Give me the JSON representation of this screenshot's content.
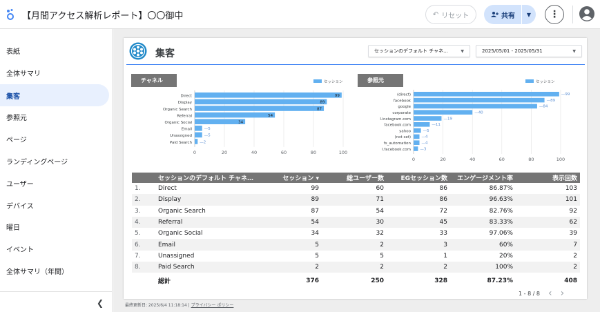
{
  "header": {
    "title": "【月間アクセス解析レポート】〇〇御中",
    "reset_label": "リセット",
    "share_label": "共有"
  },
  "sidebar": {
    "items": [
      {
        "label": "表紙"
      },
      {
        "label": "全体サマリ"
      },
      {
        "label": "集客"
      },
      {
        "label": "参照元"
      },
      {
        "label": "ページ"
      },
      {
        "label": "ランディングページ"
      },
      {
        "label": "ユーザー"
      },
      {
        "label": "デバイス"
      },
      {
        "label": "曜日"
      },
      {
        "label": "イベント"
      },
      {
        "label": "全体サマリ（年間）"
      }
    ],
    "active_index": 2
  },
  "page": {
    "title": "集客",
    "channel_dropdown": "セッションのデフォルト チャネ...",
    "date_range": "2025/05/01 - 2025/05/31"
  },
  "colors": {
    "bar": "#62b0f0",
    "accent": "#4285f4",
    "header_gray": "#757575",
    "active_bg": "#e8f0fe"
  },
  "chart_data": [
    {
      "type": "bar",
      "title": "チャネル",
      "legend": "セッション",
      "categories": [
        "Direct",
        "Display",
        "Organic Search",
        "Referral",
        "Organic Social",
        "Email",
        "Unassigned",
        "Paid Search"
      ],
      "values": [
        99,
        89,
        87,
        54,
        34,
        5,
        5,
        2
      ],
      "xticks": [
        "0",
        "20",
        "40",
        "60",
        "80",
        "100"
      ],
      "xlim": [
        0,
        100
      ]
    },
    {
      "type": "bar",
      "title": "参照元",
      "legend": "セッション",
      "categories": [
        "(direct)",
        "facebook",
        "google",
        "corporate",
        "l.instagram.com",
        "facebook.com",
        "yahoo",
        "(not set)",
        "fs_automation",
        "l.facebook.com"
      ],
      "values": [
        99,
        89,
        84,
        40,
        19,
        11,
        5,
        4,
        4,
        3
      ],
      "xticks": [
        "0",
        "20",
        "40",
        "60",
        "80",
        "100"
      ],
      "xlim": [
        0,
        100
      ]
    }
  ],
  "table": {
    "headers": [
      "セッションのデフォルト チャネル...",
      "セッション ▾",
      "総ユーザー数",
      "EGセッション数",
      "エンゲージメント率",
      "表示回数"
    ],
    "rows": [
      {
        "idx": "1.",
        "channel": "Direct",
        "sessions": "99",
        "users": "60",
        "eg": "86",
        "rate": "86.87%",
        "views": "103"
      },
      {
        "idx": "2.",
        "channel": "Display",
        "sessions": "89",
        "users": "71",
        "eg": "86",
        "rate": "96.63%",
        "views": "101"
      },
      {
        "idx": "3.",
        "channel": "Organic Search",
        "sessions": "87",
        "users": "54",
        "eg": "72",
        "rate": "82.76%",
        "views": "92"
      },
      {
        "idx": "4.",
        "channel": "Referral",
        "sessions": "54",
        "users": "30",
        "eg": "45",
        "rate": "83.33%",
        "views": "62"
      },
      {
        "idx": "5.",
        "channel": "Organic Social",
        "sessions": "34",
        "users": "32",
        "eg": "33",
        "rate": "97.06%",
        "views": "39"
      },
      {
        "idx": "6.",
        "channel": "Email",
        "sessions": "5",
        "users": "2",
        "eg": "3",
        "rate": "60%",
        "views": "7"
      },
      {
        "idx": "7.",
        "channel": "Unassigned",
        "sessions": "5",
        "users": "5",
        "eg": "1",
        "rate": "20%",
        "views": "2"
      },
      {
        "idx": "8.",
        "channel": "Paid Search",
        "sessions": "2",
        "users": "2",
        "eg": "2",
        "rate": "100%",
        "views": "2"
      }
    ],
    "total": {
      "label": "総計",
      "sessions": "376",
      "users": "250",
      "eg": "328",
      "rate": "87.23%",
      "views": "408"
    },
    "pager": "1 - 8 / 8"
  },
  "footer": {
    "updated": "最終更新日: 2025/6/4 11:18:14",
    "separator": "|",
    "privacy": "プライバシー ポリシー"
  }
}
